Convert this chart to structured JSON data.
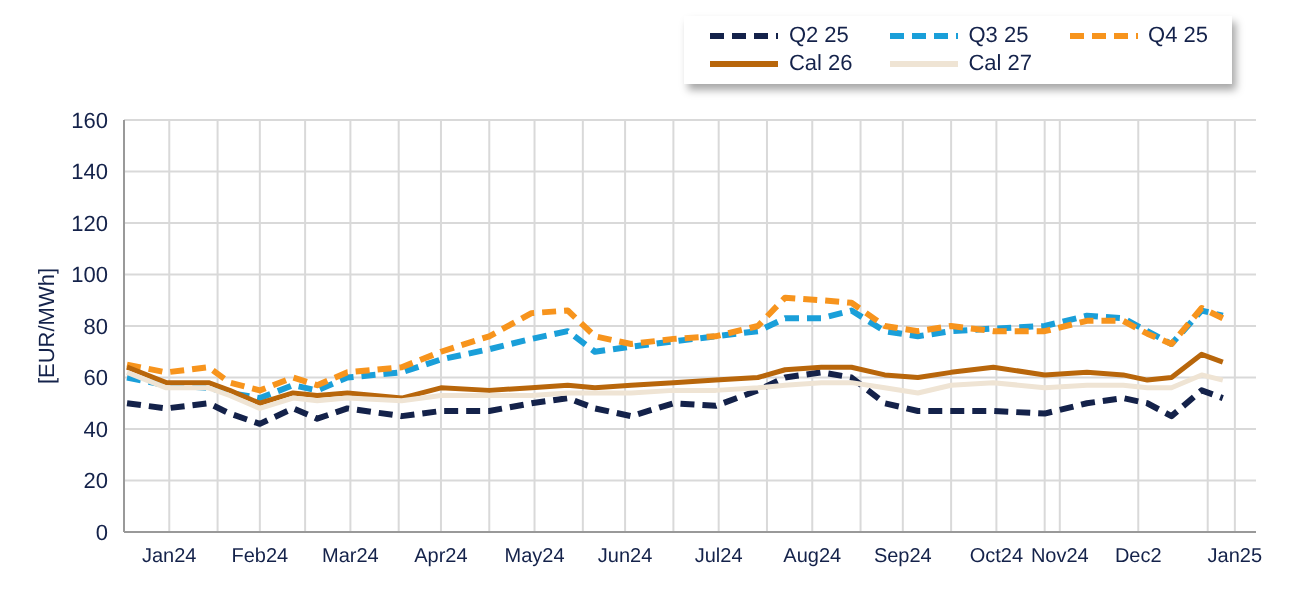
{
  "chart_data": {
    "type": "line",
    "ylabel": "[EUR/MWh]",
    "x": [
      "2024-01-02",
      "2024-01-15",
      "2024-01-29",
      "2024-02-05",
      "2024-02-15",
      "2024-02-26",
      "2024-03-05",
      "2024-03-15",
      "2024-04-02",
      "2024-04-15",
      "2024-05-01",
      "2024-05-15",
      "2024-05-27",
      "2024-06-05",
      "2024-06-17",
      "2024-07-01",
      "2024-07-15",
      "2024-07-29",
      "2024-08-07",
      "2024-08-19",
      "2024-08-29",
      "2024-09-09",
      "2024-09-20",
      "2024-10-01",
      "2024-10-15",
      "2024-11-01",
      "2024-11-15",
      "2024-11-27",
      "2024-12-05",
      "2024-12-13",
      "2024-12-23",
      "2024-12-30"
    ],
    "series": [
      {
        "name": "Q2 25",
        "color": "#14224a",
        "line_style": "dashed",
        "values": [
          50,
          48,
          50,
          46,
          42,
          48,
          44,
          48,
          45,
          47,
          47,
          50,
          52,
          48,
          45,
          50,
          49,
          55,
          60,
          62,
          60,
          50,
          47,
          47,
          47,
          46,
          50,
          52,
          50,
          45,
          55,
          52
        ]
      },
      {
        "name": "Q3 25",
        "color": "#1a9fd9",
        "line_style": "dashed",
        "values": [
          60,
          57,
          56,
          54,
          52,
          57,
          55,
          60,
          62,
          67,
          71,
          75,
          78,
          70,
          72,
          74,
          76,
          78,
          83,
          83,
          86,
          78,
          76,
          78,
          79,
          80,
          84,
          83,
          78,
          73,
          86,
          84
        ]
      },
      {
        "name": "Q4 25",
        "color": "#f7941d",
        "line_style": "dashed",
        "values": [
          65,
          62,
          64,
          58,
          55,
          60,
          57,
          62,
          64,
          70,
          76,
          85,
          86,
          76,
          73,
          75,
          76,
          80,
          91,
          90,
          89,
          80,
          78,
          80,
          78,
          78,
          82,
          82,
          77,
          73,
          87,
          83
        ]
      },
      {
        "name": "Cal 26",
        "color": "#b8660b",
        "line_style": "solid",
        "values": [
          64,
          58,
          58,
          55,
          50,
          54,
          53,
          54,
          52,
          56,
          55,
          56,
          57,
          56,
          57,
          58,
          59,
          60,
          63,
          64,
          64,
          61,
          60,
          62,
          64,
          61,
          62,
          61,
          59,
          60,
          69,
          66
        ]
      },
      {
        "name": "Cal 27",
        "color": "#efe4d4",
        "line_style": "solid",
        "values": [
          62,
          56,
          56,
          53,
          48,
          52,
          51,
          52,
          51,
          53,
          53,
          53,
          54,
          54,
          54,
          55,
          55,
          56,
          57,
          58,
          58,
          56,
          54,
          57,
          58,
          56,
          57,
          57,
          56,
          56,
          61,
          59
        ]
      }
    ],
    "xlim": [
      "2024-01-01",
      "2025-01-10"
    ],
    "xticks": [
      {
        "value": "2024-01-16",
        "label": "Jan24"
      },
      {
        "value": "2024-02-01",
        "label": null
      },
      {
        "value": "2024-02-15",
        "label": "Feb24"
      },
      {
        "value": "2024-03-01",
        "label": null
      },
      {
        "value": "2024-03-16",
        "label": "Mar24"
      },
      {
        "value": "2024-04-01",
        "label": null
      },
      {
        "value": "2024-04-15",
        "label": "Apr24"
      },
      {
        "value": "2024-05-01",
        "label": null
      },
      {
        "value": "2024-05-16",
        "label": "May24"
      },
      {
        "value": "2024-06-01",
        "label": null
      },
      {
        "value": "2024-06-15",
        "label": "Jun24"
      },
      {
        "value": "2024-07-01",
        "label": null
      },
      {
        "value": "2024-07-16",
        "label": "Jul24"
      },
      {
        "value": "2024-08-01",
        "label": null
      },
      {
        "value": "2024-08-16",
        "label": "Aug24"
      },
      {
        "value": "2024-09-01",
        "label": null
      },
      {
        "value": "2024-09-15",
        "label": "Sep24"
      },
      {
        "value": "2024-10-01",
        "label": null
      },
      {
        "value": "2024-10-16",
        "label": "Oct24"
      },
      {
        "value": "2024-11-01",
        "label": null
      },
      {
        "value": "2024-11-06",
        "label": "Nov24"
      },
      {
        "value": "2024-12-02",
        "label": "Dec2"
      },
      {
        "value": "2024-12-25",
        "label": null
      },
      {
        "value": "2025-01-03",
        "label": "Jan25"
      }
    ],
    "ylim": [
      0,
      160
    ],
    "yticks": [
      0,
      20,
      40,
      60,
      80,
      100,
      120,
      140,
      160
    ],
    "grid": true,
    "legend": "top right",
    "marker": "none"
  }
}
